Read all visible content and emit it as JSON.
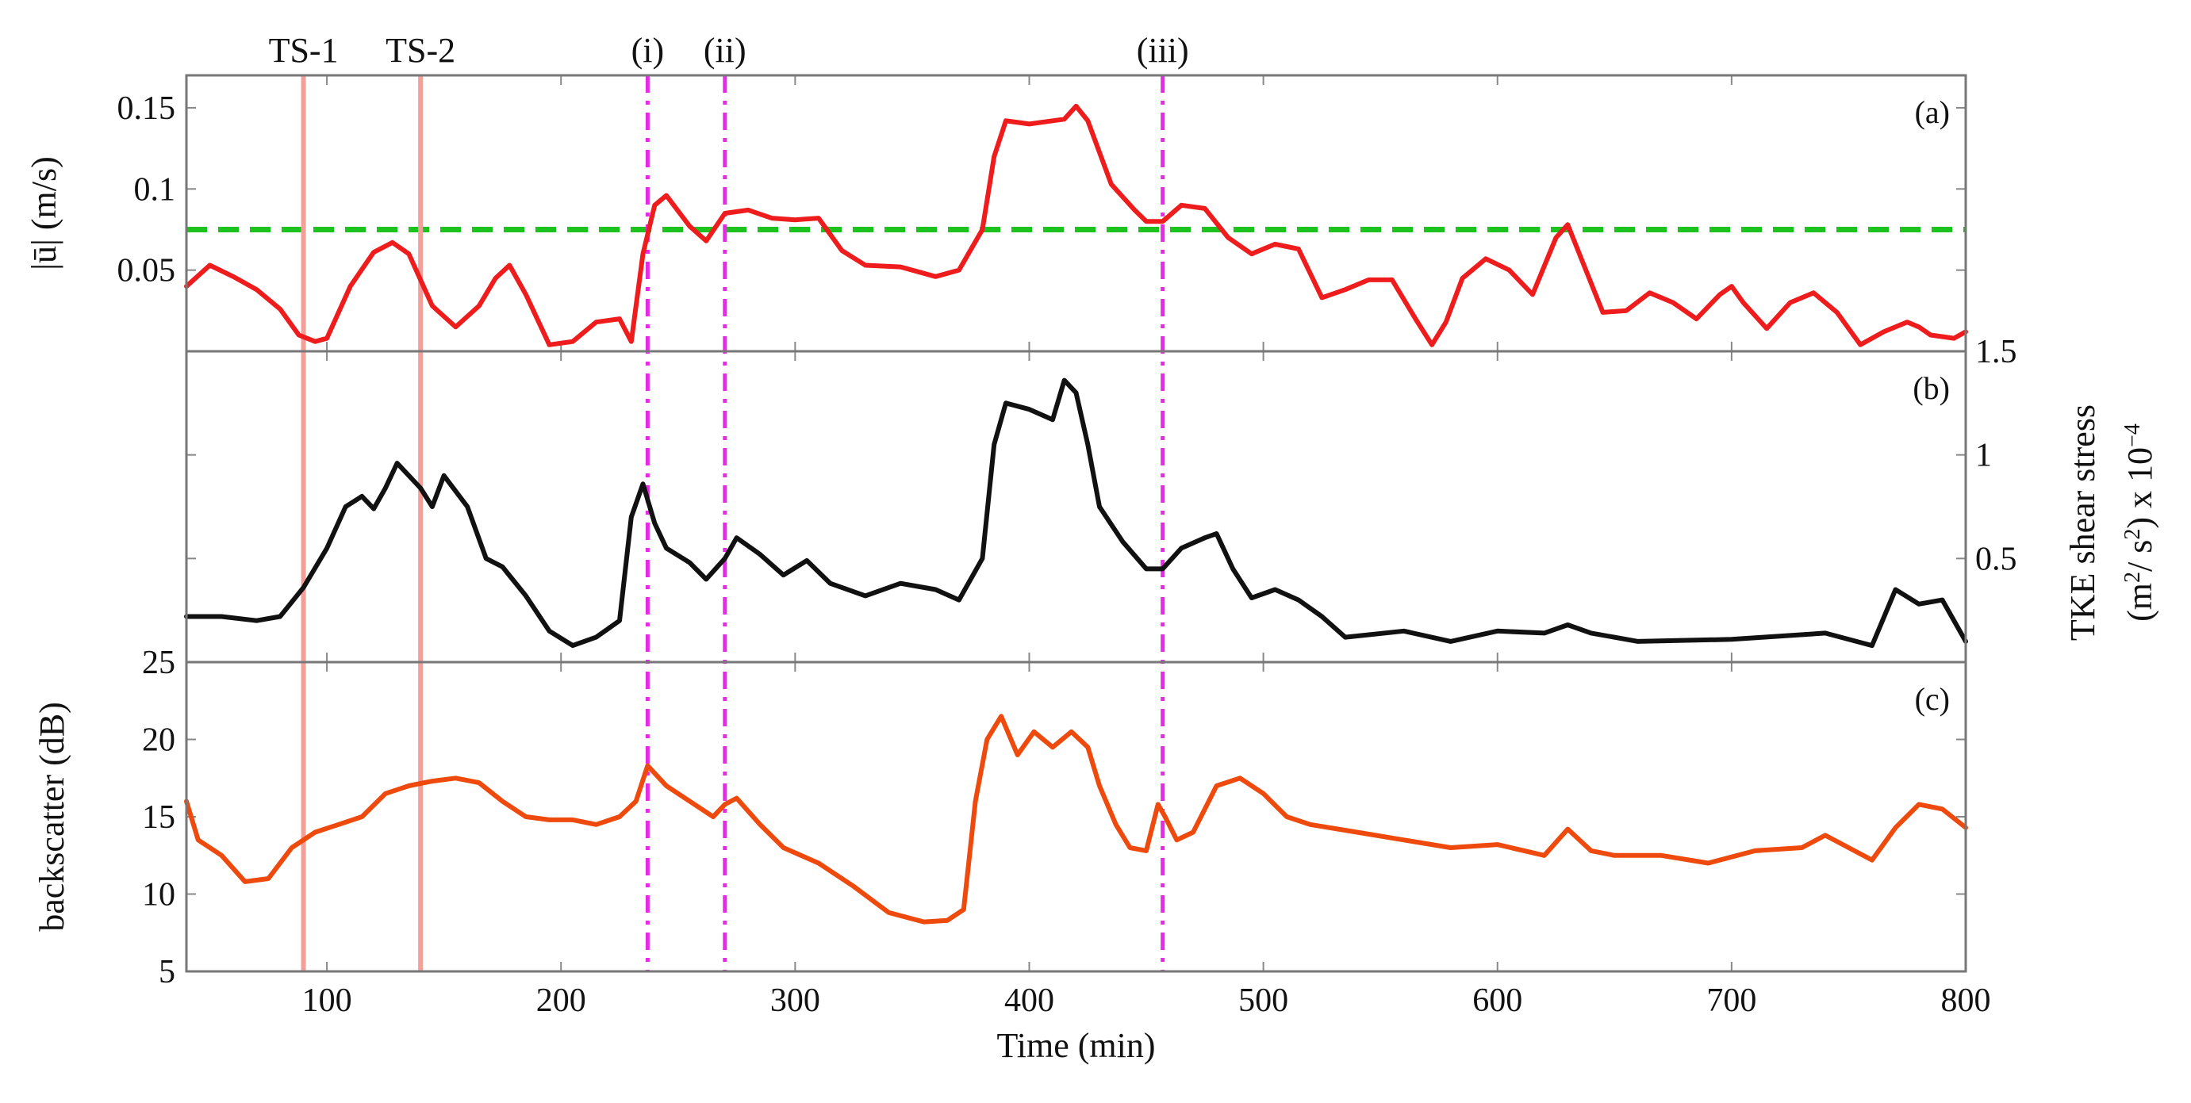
{
  "chart_data": {
    "type": "line",
    "xlabel": "Time (min)",
    "xlim": [
      40,
      800
    ],
    "xticks": [
      100,
      200,
      300,
      400,
      500,
      600,
      700,
      800
    ],
    "event_markers": {
      "solid": [
        {
          "label": "TS-1",
          "x": 90,
          "color": "#f3a09a"
        },
        {
          "label": "TS-2",
          "x": 140,
          "color": "#f3a09a"
        }
      ],
      "dashdot": [
        {
          "label": "(i)",
          "x": 237,
          "color": "#e62ae6"
        },
        {
          "label": "(ii)",
          "x": 270,
          "color": "#e62ae6"
        },
        {
          "label": "(iii)",
          "x": 457,
          "color": "#e62ae6"
        }
      ]
    },
    "panels": [
      {
        "id": "a",
        "letter": "(a)",
        "ylabel": "|ū| (m/s)",
        "ylim": [
          0,
          0.17
        ],
        "yticks": [
          "0.05",
          "0.1",
          "0.15"
        ],
        "ytick_values": [
          0.05,
          0.1,
          0.15
        ],
        "color": "#ee1c1c",
        "threshold": {
          "y": 0.075,
          "color": "#1ec21e"
        },
        "x": [
          40,
          50,
          60,
          70,
          80,
          88,
          95,
          100,
          110,
          120,
          128,
          135,
          145,
          155,
          165,
          172,
          178,
          185,
          195,
          205,
          215,
          225,
          230,
          235,
          240,
          245,
          255,
          262,
          270,
          280,
          290,
          300,
          310,
          320,
          330,
          345,
          360,
          370,
          380,
          385,
          390,
          400,
          410,
          415,
          420,
          425,
          435,
          445,
          450,
          457,
          465,
          475,
          485,
          495,
          505,
          515,
          525,
          535,
          545,
          555,
          565,
          572,
          578,
          585,
          595,
          605,
          615,
          625,
          630,
          635,
          645,
          655,
          665,
          675,
          685,
          695,
          700,
          705,
          715,
          725,
          735,
          745,
          755,
          765,
          775,
          780,
          785,
          795,
          800
        ],
        "values": [
          0.04,
          0.053,
          0.046,
          0.038,
          0.026,
          0.01,
          0.006,
          0.008,
          0.04,
          0.061,
          0.067,
          0.06,
          0.028,
          0.015,
          0.028,
          0.045,
          0.053,
          0.035,
          0.004,
          0.006,
          0.018,
          0.02,
          0.006,
          0.06,
          0.09,
          0.096,
          0.077,
          0.068,
          0.085,
          0.087,
          0.082,
          0.081,
          0.082,
          0.062,
          0.053,
          0.052,
          0.046,
          0.05,
          0.075,
          0.12,
          0.142,
          0.14,
          0.142,
          0.143,
          0.151,
          0.142,
          0.103,
          0.087,
          0.08,
          0.08,
          0.09,
          0.088,
          0.07,
          0.06,
          0.066,
          0.063,
          0.033,
          0.038,
          0.044,
          0.044,
          0.02,
          0.004,
          0.018,
          0.045,
          0.057,
          0.05,
          0.035,
          0.07,
          0.078,
          0.06,
          0.024,
          0.025,
          0.036,
          0.03,
          0.02,
          0.035,
          0.04,
          0.03,
          0.014,
          0.03,
          0.036,
          0.024,
          0.004,
          0.012,
          0.018,
          0.015,
          0.01,
          0.008,
          0.012
        ]
      },
      {
        "id": "b",
        "letter": "(b)",
        "ylabel": "TKE shear stress",
        "ylabel_line2_prefix": "(m",
        "ylabel_line2_mid": "/ s",
        "ylabel_line2_suffix": ") x 10",
        "ylabel_sup1": "2",
        "ylabel_sup2": "2",
        "ylabel_sup3": "−4",
        "ylim": [
          0,
          1.5
        ],
        "yticks": [
          "0.5",
          "1",
          "1.5"
        ],
        "ytick_values": [
          0.5,
          1.0,
          1.5
        ],
        "color": "#111111",
        "x": [
          40,
          55,
          70,
          80,
          90,
          100,
          108,
          115,
          120,
          125,
          130,
          135,
          140,
          145,
          150,
          160,
          168,
          175,
          185,
          195,
          205,
          215,
          225,
          230,
          235,
          240,
          245,
          255,
          262,
          270,
          275,
          285,
          295,
          305,
          315,
          330,
          345,
          360,
          370,
          380,
          385,
          390,
          400,
          410,
          415,
          420,
          425,
          430,
          440,
          450,
          457,
          465,
          475,
          480,
          487,
          495,
          505,
          515,
          525,
          535,
          560,
          580,
          600,
          620,
          630,
          640,
          660,
          700,
          740,
          760,
          770,
          780,
          790,
          800
        ],
        "values": [
          0.22,
          0.22,
          0.2,
          0.22,
          0.36,
          0.55,
          0.75,
          0.8,
          0.74,
          0.84,
          0.96,
          0.9,
          0.84,
          0.75,
          0.9,
          0.75,
          0.5,
          0.46,
          0.32,
          0.15,
          0.08,
          0.12,
          0.2,
          0.7,
          0.86,
          0.67,
          0.55,
          0.48,
          0.4,
          0.5,
          0.6,
          0.52,
          0.42,
          0.49,
          0.38,
          0.32,
          0.38,
          0.35,
          0.3,
          0.5,
          1.05,
          1.25,
          1.22,
          1.17,
          1.36,
          1.3,
          1.05,
          0.75,
          0.58,
          0.45,
          0.45,
          0.55,
          0.6,
          0.62,
          0.45,
          0.31,
          0.35,
          0.3,
          0.22,
          0.12,
          0.15,
          0.1,
          0.15,
          0.14,
          0.18,
          0.14,
          0.1,
          0.11,
          0.14,
          0.08,
          0.35,
          0.28,
          0.3,
          0.1
        ]
      },
      {
        "id": "c",
        "letter": "(c)",
        "ylabel": "backscatter (dB)",
        "ylim": [
          5,
          25
        ],
        "yticks": [
          "5",
          "10",
          "15",
          "20",
          "25"
        ],
        "ytick_values": [
          5,
          10,
          15,
          20,
          25
        ],
        "color": "#ef4a0e",
        "x": [
          40,
          45,
          55,
          65,
          75,
          85,
          95,
          105,
          115,
          125,
          135,
          145,
          155,
          165,
          175,
          185,
          195,
          205,
          215,
          225,
          232,
          237,
          245,
          255,
          265,
          270,
          275,
          285,
          295,
          310,
          325,
          340,
          355,
          365,
          372,
          377,
          382,
          388,
          395,
          402,
          410,
          418,
          425,
          430,
          437,
          443,
          450,
          455,
          458,
          463,
          470,
          480,
          490,
          500,
          510,
          520,
          540,
          560,
          580,
          600,
          620,
          630,
          640,
          650,
          670,
          690,
          710,
          730,
          740,
          750,
          760,
          770,
          780,
          790,
          800
        ],
        "values": [
          16,
          13.5,
          12.5,
          10.8,
          11,
          13,
          14,
          14.5,
          15,
          16.5,
          17,
          17.3,
          17.5,
          17.2,
          16,
          15,
          14.8,
          14.8,
          14.5,
          15,
          16,
          18.3,
          17,
          16,
          15,
          15.8,
          16.2,
          14.5,
          13,
          12,
          10.5,
          8.8,
          8.2,
          8.3,
          9,
          16,
          20,
          21.5,
          19,
          20.5,
          19.5,
          20.5,
          19.5,
          17,
          14.5,
          13,
          12.8,
          15.8,
          15,
          13.5,
          14,
          17,
          17.5,
          16.5,
          15,
          14.5,
          14,
          13.5,
          13,
          13.2,
          12.5,
          14.2,
          12.8,
          12.5,
          12.5,
          12,
          12.8,
          13,
          13.8,
          13,
          12.2,
          14.3,
          15.8,
          15.5,
          14.3
        ]
      }
    ]
  }
}
